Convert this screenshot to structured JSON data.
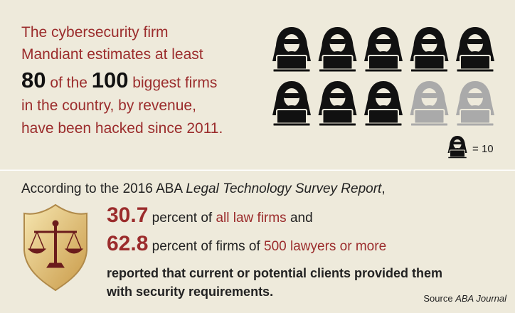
{
  "headline": {
    "line_1": "The cybersecurity firm",
    "line_2": "Mandiant estimates at least",
    "count": 80,
    "connector": "of the",
    "total": 100,
    "line_3_rest": "biggest firms",
    "line_4": "in the country, by revenue,",
    "line_5": "have been hacked since 2011."
  },
  "icon_legend": {
    "symbol": "=",
    "value": 10
  },
  "survey": {
    "intro": "According to the 2016 ABA",
    "report": "Legal Technology Survey Report",
    "intro_end": ",",
    "stat_1": {
      "value": 30.7,
      "text": "percent of",
      "highlight": "all law firms",
      "end": "and"
    },
    "stat_2": {
      "value": 62.8,
      "text": "percent of firms of",
      "highlight": "500 lawyers or more"
    },
    "conclusion_1": "reported that current or potential clients provided them",
    "conclusion_2": "with security requirements."
  },
  "source": {
    "label": "Source",
    "publication": "ABA Journal"
  }
}
